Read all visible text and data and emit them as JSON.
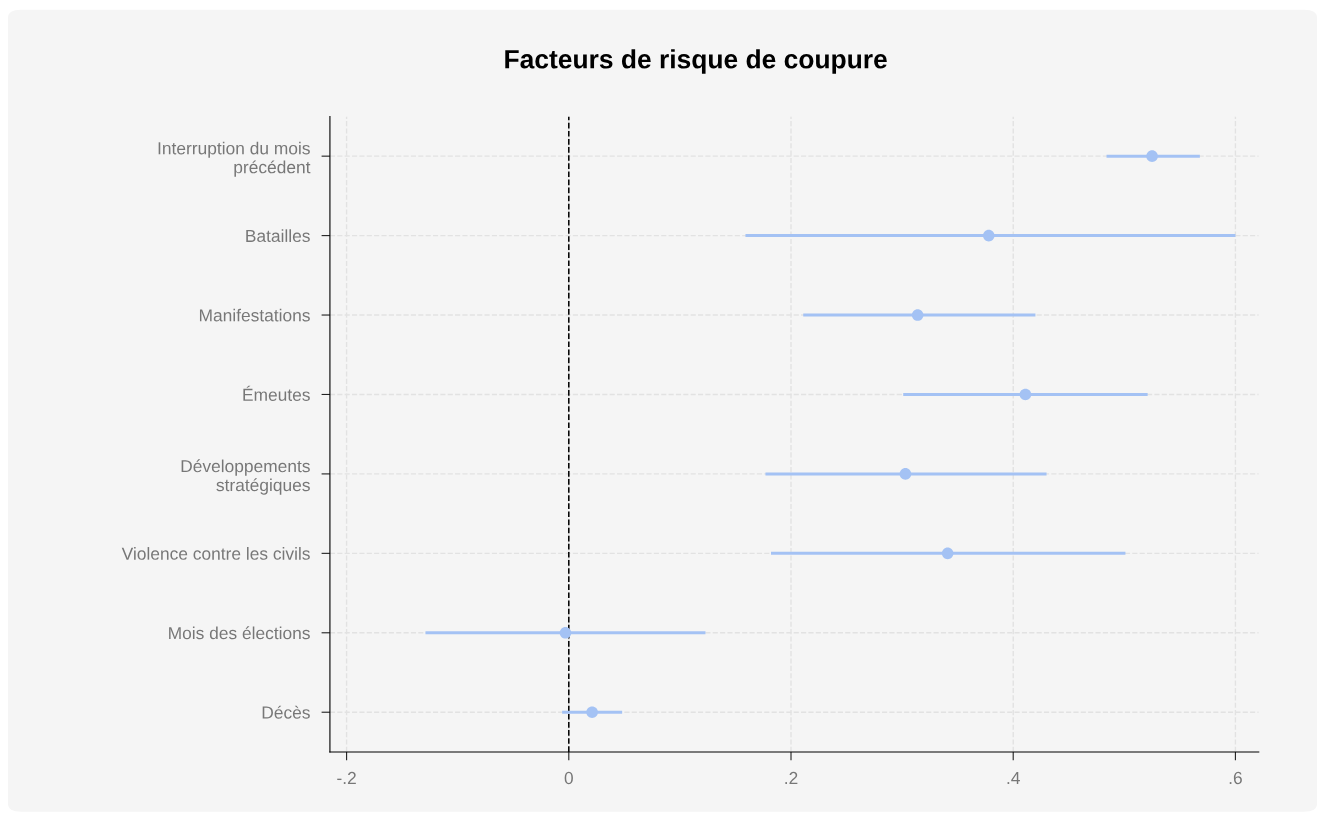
{
  "chart_data": {
    "type": "scatter",
    "orientation": "horizontal",
    "title": "Facteurs de risque de coupure",
    "categories": [
      "Interruption du mois\nprécédent",
      "Batailles",
      "Manifestations",
      "Émeutes",
      "Développements\nstratégiques",
      "Violence contre les civils",
      "Mois des élections",
      "Décès"
    ],
    "values": [
      0.525,
      0.378,
      0.314,
      0.411,
      0.303,
      0.341,
      -0.003,
      0.021
    ],
    "errors": [
      [
        0.484,
        0.568
      ],
      [
        0.159,
        0.6
      ],
      [
        0.211,
        0.42
      ],
      [
        0.301,
        0.521
      ],
      [
        0.177,
        0.43
      ],
      [
        0.182,
        0.501
      ],
      [
        -0.129,
        0.123
      ],
      [
        -0.006,
        0.048
      ]
    ],
    "color": "#a4c2f4",
    "marker": "circle",
    "xlim": [
      -0.215,
      0.621
    ],
    "xticks": [
      {
        "value": -0.2,
        "label": "-.2"
      },
      0,
      {
        "value": 0.2,
        "label": ".2"
      },
      {
        "value": 0.4,
        "label": ".4"
      },
      {
        "value": 0.6,
        "label": ".6"
      }
    ],
    "ref_lines": [
      {
        "axis": "x",
        "value": 0,
        "color": "#000000",
        "line_style": "dashed"
      }
    ],
    "grid": true
  }
}
